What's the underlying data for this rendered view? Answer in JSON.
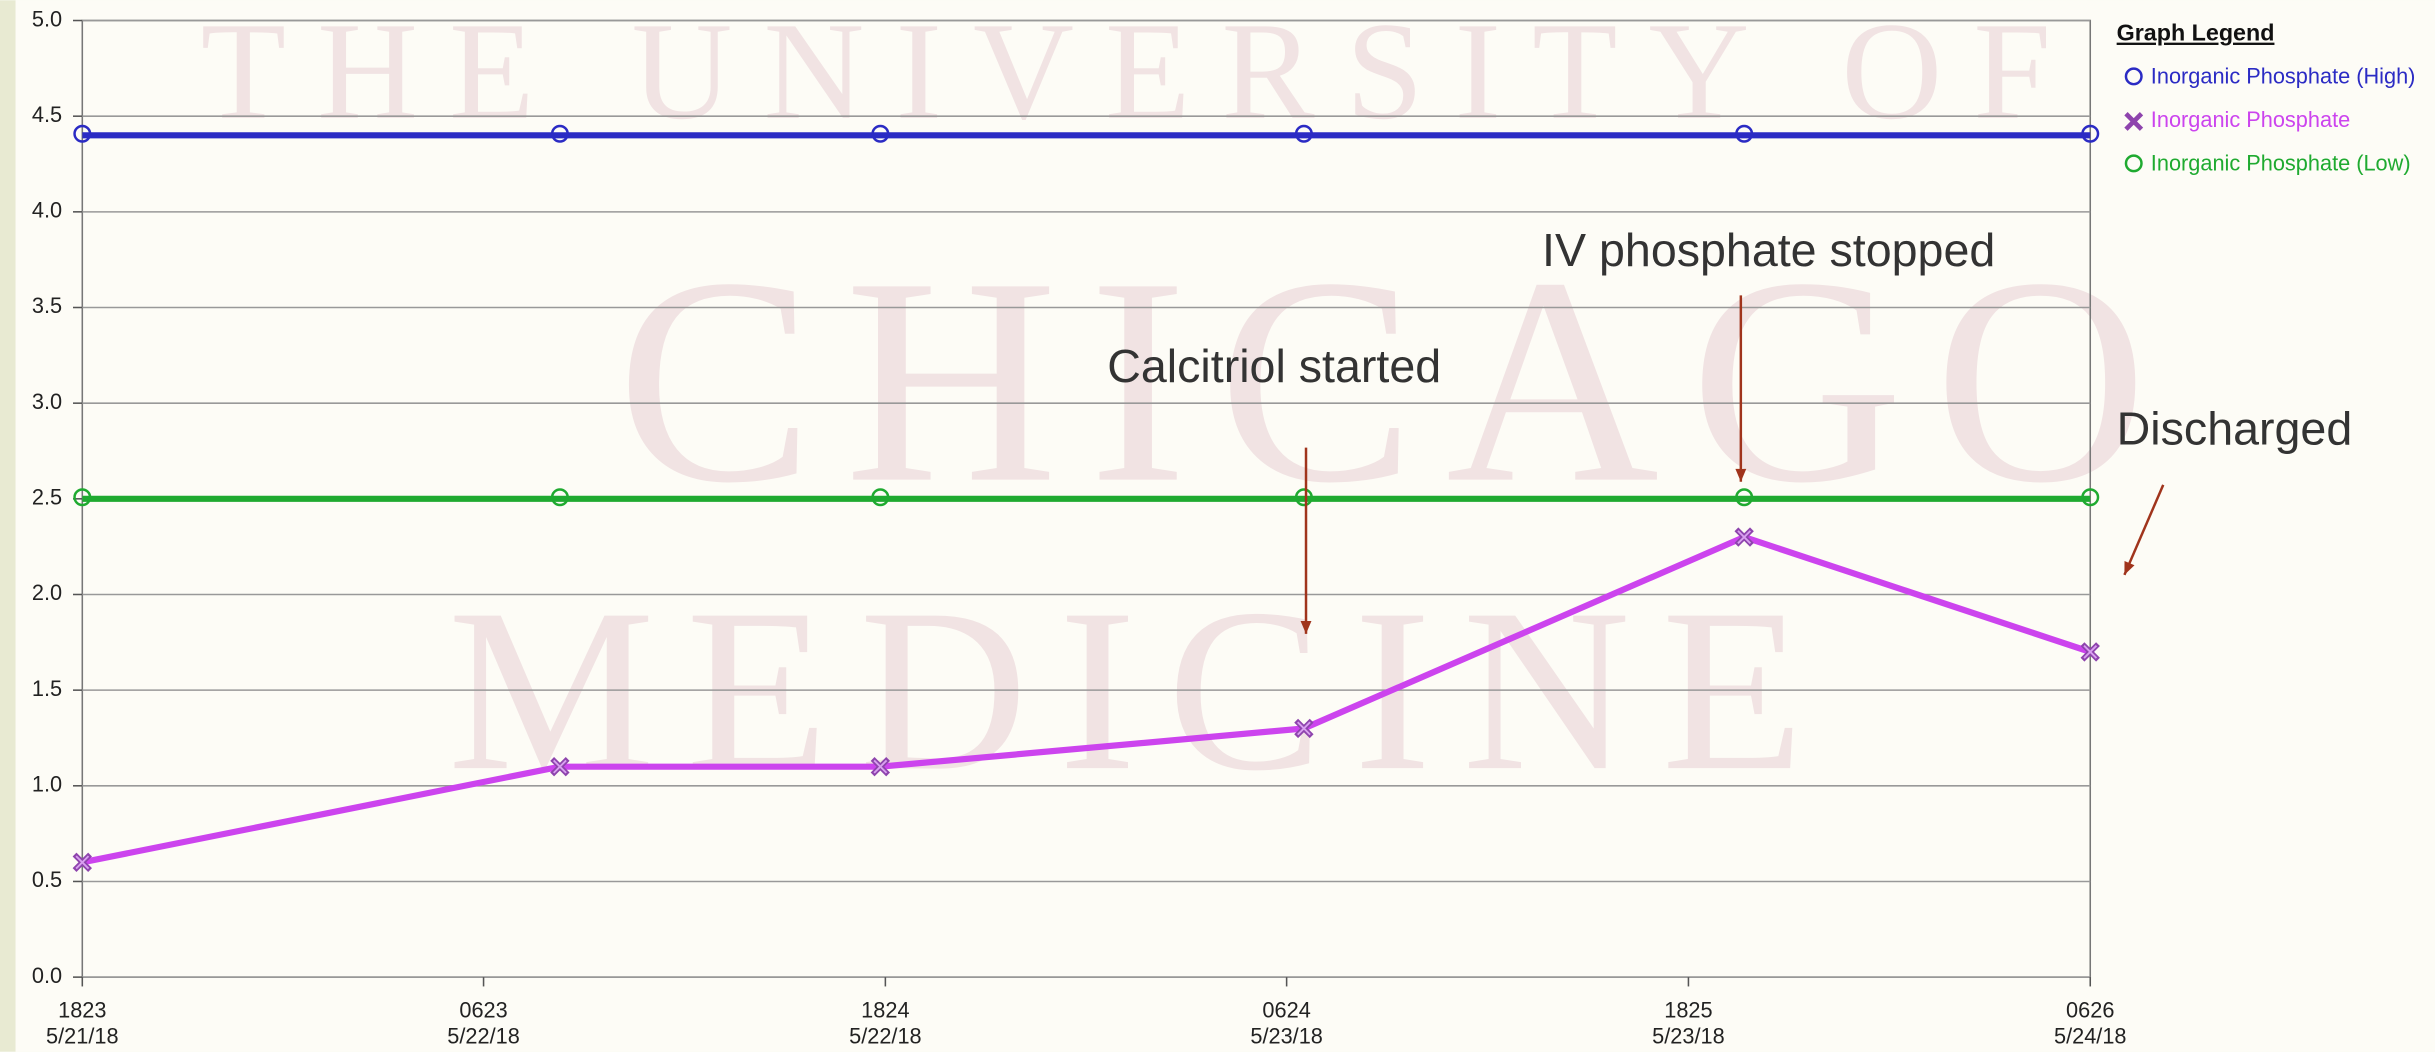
{
  "chart_data": {
    "type": "line",
    "watermark": [
      "THE UNIVERSITY OF",
      "CHICAGO",
      "MEDICINE"
    ],
    "x": [
      "2018-05-21T18:23",
      "2018-05-22T08:40",
      "2018-05-22T18:15",
      "2018-05-23T06:55",
      "2018-05-23T20:05",
      "2018-05-24T06:26"
    ],
    "xlim": [
      "2018-05-21T18:23",
      "2018-05-24T06:26"
    ],
    "xticks": [
      {
        "value": "2018-05-21T18:23",
        "label": "1823\n5/21/18"
      },
      {
        "value": "2018-05-22T06:23",
        "label": "0623\n5/22/18"
      },
      {
        "value": "2018-05-22T18:24",
        "label": "1824\n5/22/18"
      },
      {
        "value": "2018-05-23T06:24",
        "label": "0624\n5/23/18"
      },
      {
        "value": "2018-05-23T18:25",
        "label": "1825\n5/23/18"
      },
      {
        "value": "2018-05-24T06:26",
        "label": "0626\n5/24/18"
      }
    ],
    "ylim": [
      0,
      5
    ],
    "yticks": [
      {
        "value": 0,
        "label": "0.0"
      },
      0.5,
      {
        "value": 1,
        "label": "1.0"
      },
      1.5,
      {
        "value": 2,
        "label": "2.0"
      },
      2.5,
      {
        "value": 3,
        "label": "3.0"
      },
      3.5,
      {
        "value": 4,
        "label": "4.0"
      },
      4.5,
      {
        "value": 5,
        "label": "5.0"
      }
    ],
    "grid": true,
    "legend_title": "Graph Legend",
    "legend": "right",
    "series": [
      {
        "name": "Inorganic Phosphate (High)",
        "color": "#2b2bc4",
        "marker": "circle",
        "values": [
          4.4,
          4.4,
          4.4,
          4.4,
          4.4,
          4.4
        ]
      },
      {
        "name": "Inorganic Phosphate",
        "color": "#cc44ee",
        "marker": "x",
        "values": [
          0.6,
          1.1,
          1.1,
          1.3,
          2.3,
          1.7
        ]
      },
      {
        "name": "Inorganic Phosphate (Low)",
        "color": "#1faa30",
        "marker": "circle",
        "values": [
          2.5,
          2.5,
          2.5,
          2.5,
          2.5,
          2.5
        ]
      }
    ],
    "annotations": [
      "Calcitriol started",
      "IV phosphate stopped",
      "Discharged"
    ]
  }
}
